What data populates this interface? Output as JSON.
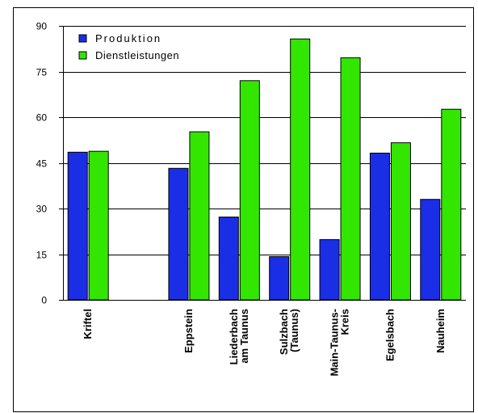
{
  "chart_data": {
    "type": "bar",
    "categories": [
      "Kriftel",
      "",
      "Eppstein",
      "Liederbach\nam Taunus",
      "Sulzbach\n(Taunus)",
      "Main-Taunus-\nKreis",
      "Egelsbach",
      "Nauheim"
    ],
    "series": [
      {
        "name": "Produktion",
        "values": [
          48.5,
          null,
          43.2,
          27.2,
          14.2,
          19.8,
          48.2,
          33.0
        ]
      },
      {
        "name": "Dienstleistungen",
        "values": [
          48.8,
          null,
          55.2,
          72.0,
          85.7,
          79.5,
          51.6,
          62.6
        ]
      }
    ],
    "ylim": [
      0,
      90
    ],
    "yticks": [
      "0",
      "15",
      "30",
      "45",
      "60",
      "75",
      "90"
    ],
    "grid": true,
    "legend": "top-left",
    "colors": {
      "series": [
        "#1a2ee6",
        "#33e600"
      ],
      "grid": "#000000"
    }
  }
}
